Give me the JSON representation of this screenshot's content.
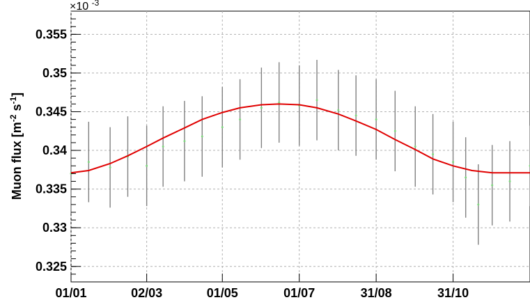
{
  "chart_data": {
    "type": "scatter",
    "title": "",
    "ylabel": "Muon flux [m",
    "ylabel_unit_power_1": "-2",
    "ylabel_mid": " s",
    "ylabel_unit_power_2": "-1",
    "ylabel_close": "]",
    "y_multiplier_base": "×10",
    "y_multiplier_exp": "-3",
    "xlim": [
      "2023-01-01",
      "2023-12-31"
    ],
    "ylim": [
      0.323,
      0.358
    ],
    "grid": true,
    "x_tick_labels": [
      {
        "date": "2023-01-01",
        "label": "01/01"
      },
      {
        "date": "2023-03-02",
        "label": "02/03"
      },
      {
        "date": "2023-05-01",
        "label": "01/05"
      },
      {
        "date": "2023-07-01",
        "label": "01/07"
      },
      {
        "date": "2023-08-31",
        "label": "31/08"
      },
      {
        "date": "2023-10-31",
        "label": "31/10"
      }
    ],
    "y_ticks": [
      0.325,
      0.33,
      0.335,
      0.34,
      0.345,
      0.35,
      0.355
    ],
    "y_tick_labels": [
      "0.325",
      "0.33",
      "0.335",
      "0.34",
      "0.345",
      "0.35",
      "0.355"
    ],
    "series": [
      {
        "type": "scatter-errorbar",
        "color": "#808080",
        "marker_color": "#7fd87f",
        "error_half_width": 0.0052,
        "x": [
          "2023-01-01",
          "2023-01-15",
          "2023-02-01",
          "2023-02-15",
          "2023-03-02",
          "2023-03-15",
          "2023-04-01",
          "2023-04-15",
          "2023-05-01",
          "2023-05-15",
          "2023-06-01",
          "2023-06-15",
          "2023-07-01",
          "2023-07-15",
          "2023-08-01",
          "2023-08-15",
          "2023-08-31",
          "2023-09-15",
          "2023-10-01",
          "2023-10-15",
          "2023-10-31",
          "2023-11-10",
          "2023-11-20",
          "2023-12-01",
          "2023-12-15",
          "2023-12-31"
        ],
        "y": [
          0.337,
          0.3385,
          0.3378,
          0.3392,
          0.338,
          0.3405,
          0.3412,
          0.3418,
          0.343,
          0.344,
          0.3455,
          0.3462,
          0.3458,
          0.3465,
          0.3452,
          0.3445,
          0.344,
          0.3425,
          0.3405,
          0.3395,
          0.3385,
          0.3365,
          0.333,
          0.3355,
          0.336,
          0.338
        ]
      },
      {
        "type": "line",
        "color": "#e00000",
        "x": [
          "2023-01-01",
          "2023-01-15",
          "2023-02-01",
          "2023-02-15",
          "2023-03-02",
          "2023-03-15",
          "2023-04-01",
          "2023-04-15",
          "2023-05-01",
          "2023-05-15",
          "2023-06-01",
          "2023-06-15",
          "2023-07-01",
          "2023-07-15",
          "2023-08-01",
          "2023-08-15",
          "2023-08-31",
          "2023-09-15",
          "2023-10-01",
          "2023-10-15",
          "2023-10-31",
          "2023-11-15",
          "2023-12-01",
          "2023-12-15",
          "2023-12-31"
        ],
        "y": [
          0.3371,
          0.3374,
          0.3383,
          0.3393,
          0.3405,
          0.3416,
          0.3429,
          0.344,
          0.3449,
          0.3455,
          0.3459,
          0.346,
          0.3459,
          0.3455,
          0.3447,
          0.3438,
          0.3427,
          0.3414,
          0.3401,
          0.3389,
          0.338,
          0.3374,
          0.3371,
          0.3371,
          0.3371
        ]
      }
    ]
  }
}
